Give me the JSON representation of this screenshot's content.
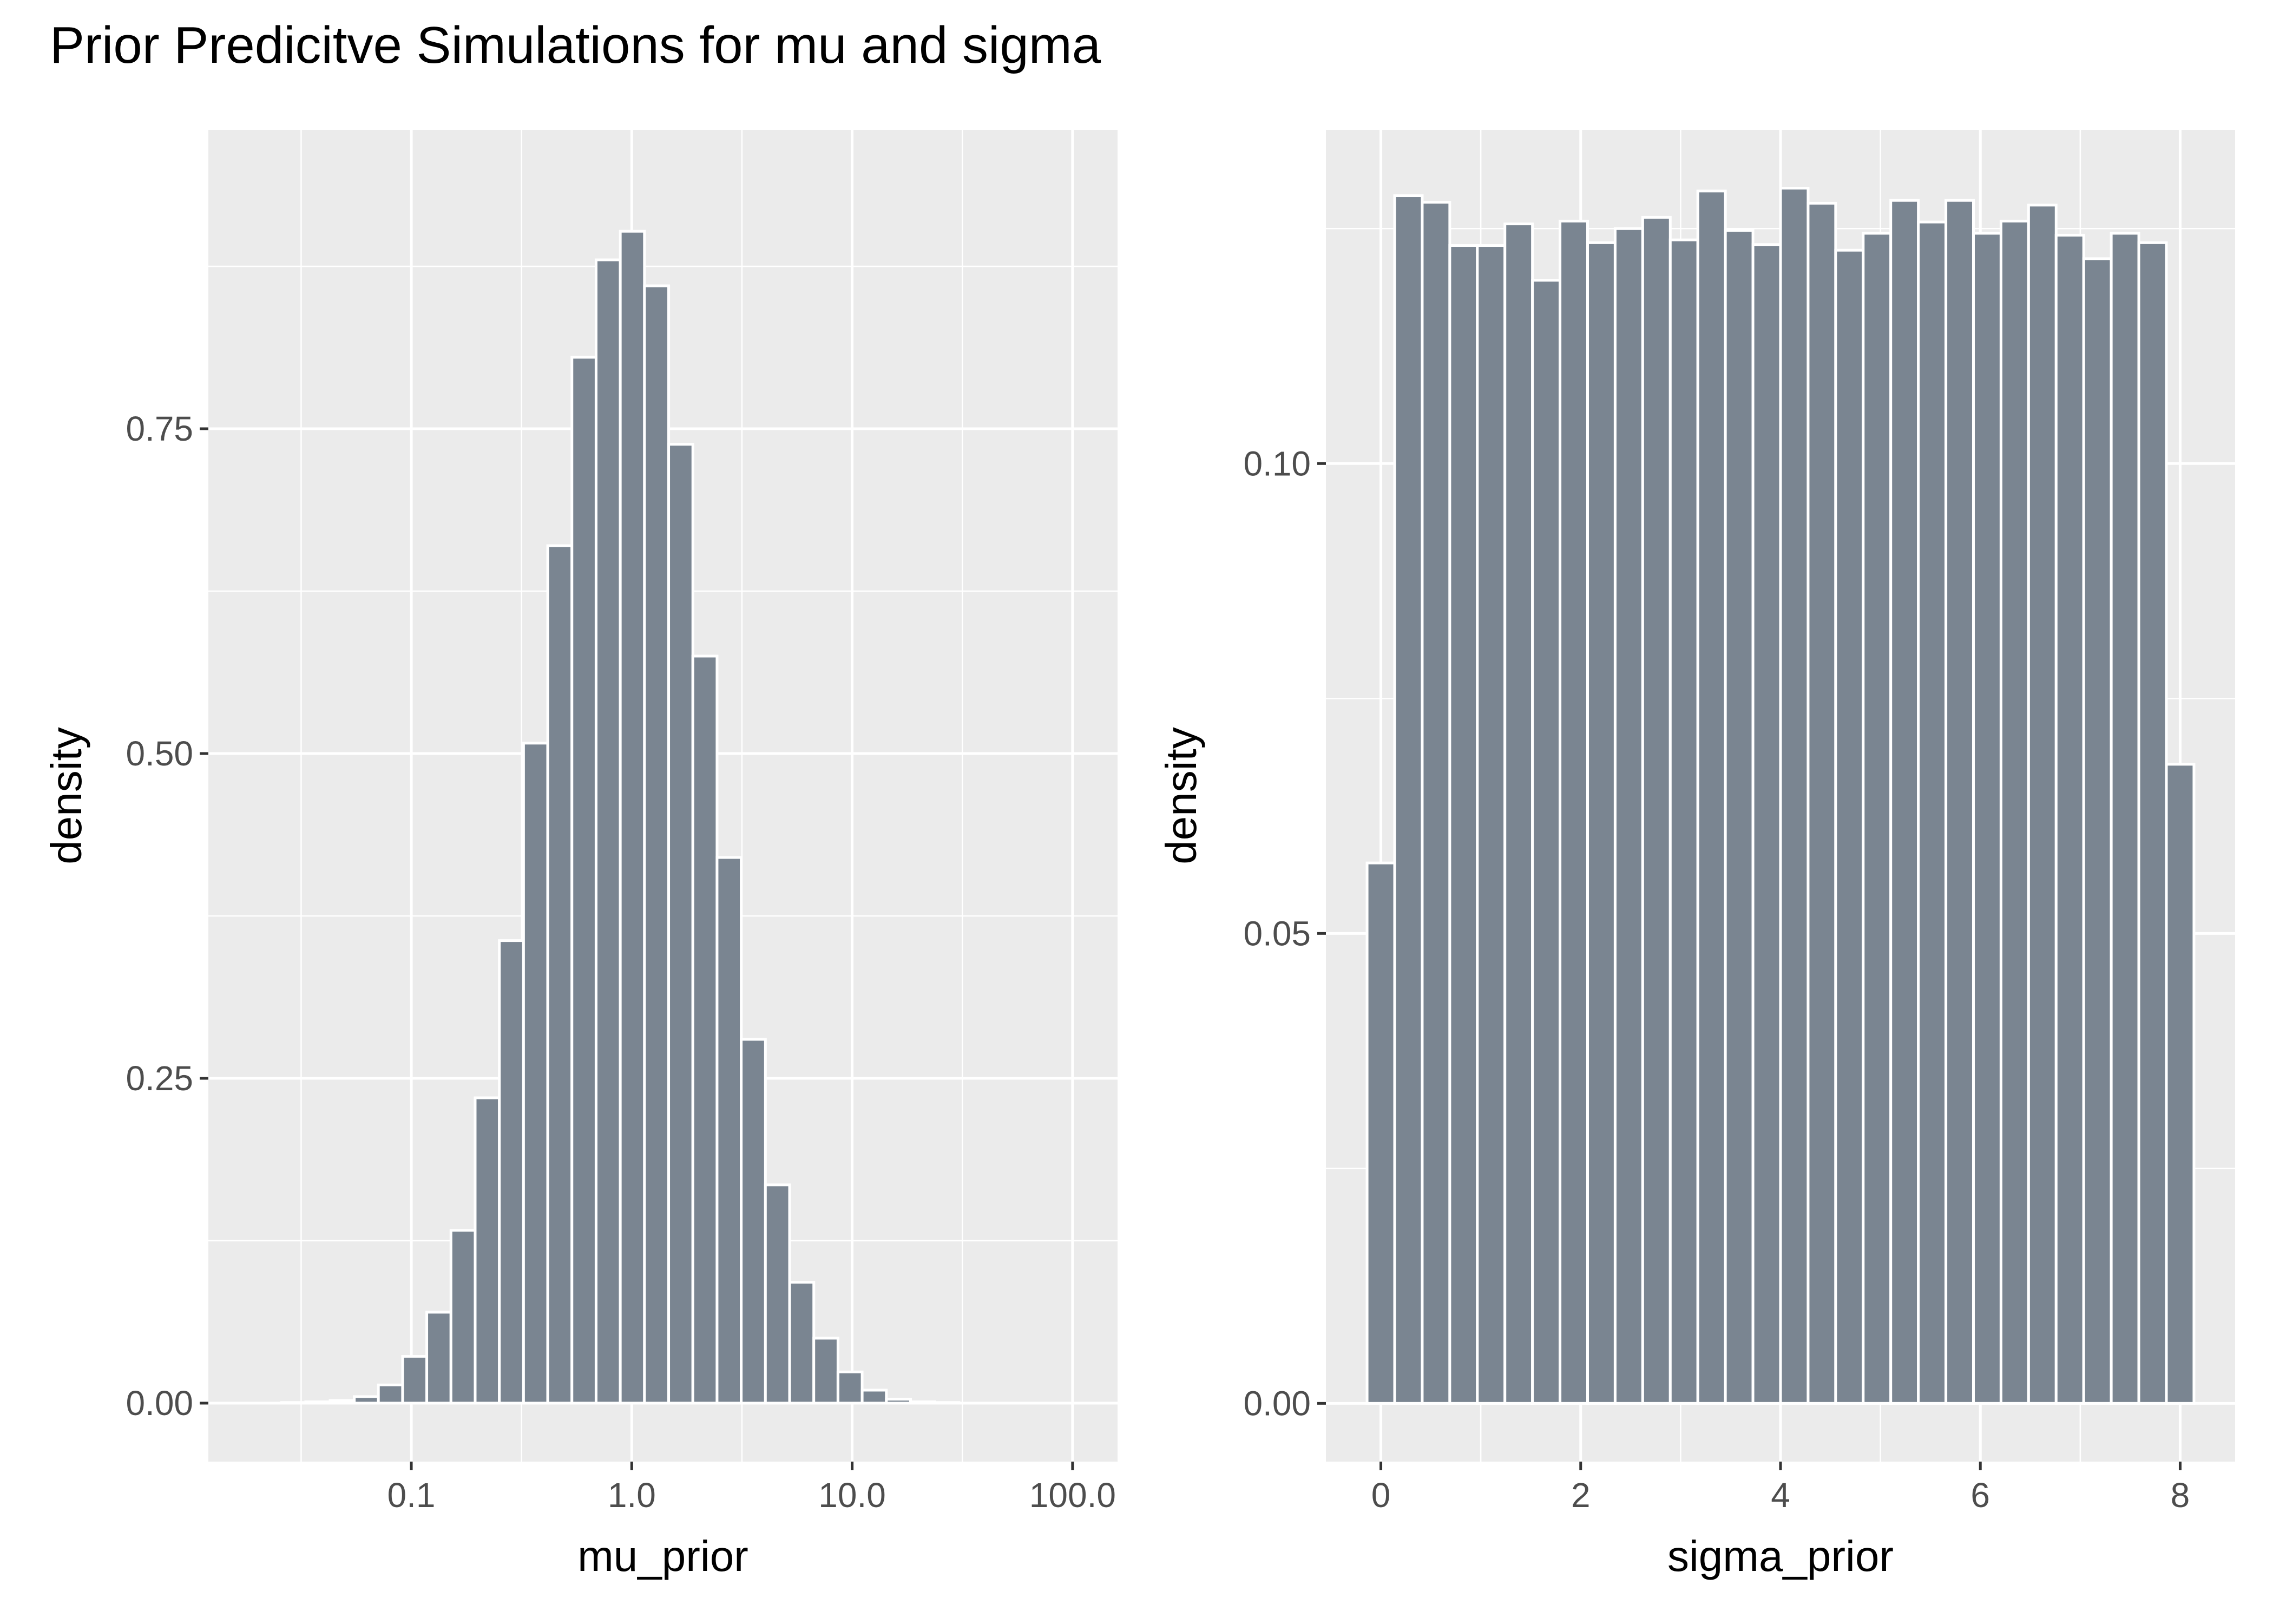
{
  "title": "Prior Predicitve Simulations for mu and sigma",
  "colors": {
    "bar_fill": "#7a8591",
    "bar_outline": "#ffffff",
    "panel_bg": "#ebebeb",
    "grid": "#ffffff"
  },
  "chart_data": [
    {
      "type": "bar",
      "title": "",
      "xlabel": "mu_prior",
      "ylabel": "density",
      "x_scale": "log10",
      "xlim": [
        0.012,
        160
      ],
      "ylim": [
        -0.045,
        0.98
      ],
      "x_ticks": [
        0.1,
        1,
        10,
        100
      ],
      "x_tick_labels": [
        "0.1",
        "1.0",
        "10.0",
        "100.0"
      ],
      "y_ticks": [
        0,
        0.25,
        0.5,
        0.75
      ],
      "y_tick_labels": [
        "0.00",
        "0.25",
        "0.50",
        "0.75"
      ],
      "grid": true,
      "bins": [
        {
          "x0": 0.02,
          "x1": 0.0258,
          "y": 0.0
        },
        {
          "x0": 0.0258,
          "x1": 0.0332,
          "y": 0.0005
        },
        {
          "x0": 0.0332,
          "x1": 0.0428,
          "y": 0.001
        },
        {
          "x0": 0.0428,
          "x1": 0.0551,
          "y": 0.002
        },
        {
          "x0": 0.0551,
          "x1": 0.0709,
          "y": 0.005
        },
        {
          "x0": 0.0709,
          "x1": 0.0913,
          "y": 0.014
        },
        {
          "x0": 0.0913,
          "x1": 0.1175,
          "y": 0.036
        },
        {
          "x0": 0.1175,
          "x1": 0.1513,
          "y": 0.07
        },
        {
          "x0": 0.1513,
          "x1": 0.1948,
          "y": 0.133
        },
        {
          "x0": 0.1948,
          "x1": 0.2508,
          "y": 0.235
        },
        {
          "x0": 0.2508,
          "x1": 0.3229,
          "y": 0.356
        },
        {
          "x0": 0.3229,
          "x1": 0.4157,
          "y": 0.508
        },
        {
          "x0": 0.4157,
          "x1": 0.5352,
          "y": 0.66
        },
        {
          "x0": 0.5352,
          "x1": 0.6891,
          "y": 0.805
        },
        {
          "x0": 0.6891,
          "x1": 0.8872,
          "y": 0.88
        },
        {
          "x0": 0.8872,
          "x1": 1.1422,
          "y": 0.902
        },
        {
          "x0": 1.1422,
          "x1": 1.4706,
          "y": 0.86
        },
        {
          "x0": 1.4706,
          "x1": 1.8934,
          "y": 0.738
        },
        {
          "x0": 1.8934,
          "x1": 2.4377,
          "y": 0.575
        },
        {
          "x0": 2.4377,
          "x1": 3.1385,
          "y": 0.42
        },
        {
          "x0": 3.1385,
          "x1": 4.0408,
          "y": 0.28
        },
        {
          "x0": 4.0408,
          "x1": 5.2025,
          "y": 0.168
        },
        {
          "x0": 5.2025,
          "x1": 6.698,
          "y": 0.093
        },
        {
          "x0": 6.698,
          "x1": 8.6236,
          "y": 0.05
        },
        {
          "x0": 8.6236,
          "x1": 11.1028,
          "y": 0.024
        },
        {
          "x0": 11.1028,
          "x1": 14.2946,
          "y": 0.01
        },
        {
          "x0": 14.2946,
          "x1": 18.404,
          "y": 0.003
        },
        {
          "x0": 18.404,
          "x1": 23.695,
          "y": 0.001
        },
        {
          "x0": 23.695,
          "x1": 30.507,
          "y": 0.0005
        },
        {
          "x0": 30.507,
          "x1": 39.277,
          "y": 0.0
        }
      ]
    },
    {
      "type": "bar",
      "title": "",
      "xlabel": "sigma_prior",
      "ylabel": "density",
      "x_scale": "linear",
      "xlim": [
        -0.55,
        8.55
      ],
      "ylim": [
        -0.0062,
        0.1355
      ],
      "x_ticks": [
        0,
        2,
        4,
        6,
        8
      ],
      "x_tick_labels": [
        "0",
        "2",
        "4",
        "6",
        "8"
      ],
      "y_ticks": [
        0,
        0.05,
        0.1
      ],
      "y_tick_labels": [
        "0.00",
        "0.05",
        "0.10"
      ],
      "grid": true,
      "bins": [
        {
          "x0": -0.1379,
          "x1": 0.1379,
          "y": 0.0575
        },
        {
          "x0": 0.1379,
          "x1": 0.4138,
          "y": 0.1285
        },
        {
          "x0": 0.4138,
          "x1": 0.6897,
          "y": 0.1278
        },
        {
          "x0": 0.6897,
          "x1": 0.9655,
          "y": 0.1232
        },
        {
          "x0": 0.9655,
          "x1": 1.2414,
          "y": 0.1232
        },
        {
          "x0": 1.2414,
          "x1": 1.5172,
          "y": 0.1255
        },
        {
          "x0": 1.5172,
          "x1": 1.7931,
          "y": 0.1195
        },
        {
          "x0": 1.7931,
          "x1": 2.069,
          "y": 0.1258
        },
        {
          "x0": 2.069,
          "x1": 2.3448,
          "y": 0.1235
        },
        {
          "x0": 2.3448,
          "x1": 2.6207,
          "y": 0.125
        },
        {
          "x0": 2.6207,
          "x1": 2.8966,
          "y": 0.1262
        },
        {
          "x0": 2.8966,
          "x1": 3.1724,
          "y": 0.1238
        },
        {
          "x0": 3.1724,
          "x1": 3.4483,
          "y": 0.129
        },
        {
          "x0": 3.4483,
          "x1": 3.7241,
          "y": 0.1248
        },
        {
          "x0": 3.7241,
          "x1": 4.0,
          "y": 0.1233
        },
        {
          "x0": 4.0,
          "x1": 4.2759,
          "y": 0.1293
        },
        {
          "x0": 4.2759,
          "x1": 4.5517,
          "y": 0.1277
        },
        {
          "x0": 4.5517,
          "x1": 4.8276,
          "y": 0.1227
        },
        {
          "x0": 4.8276,
          "x1": 5.1034,
          "y": 0.1245
        },
        {
          "x0": 5.1034,
          "x1": 5.3793,
          "y": 0.128
        },
        {
          "x0": 5.3793,
          "x1": 5.6552,
          "y": 0.1257
        },
        {
          "x0": 5.6552,
          "x1": 5.931,
          "y": 0.128
        },
        {
          "x0": 5.931,
          "x1": 6.2069,
          "y": 0.1245
        },
        {
          "x0": 6.2069,
          "x1": 6.4828,
          "y": 0.1258
        },
        {
          "x0": 6.4828,
          "x1": 6.7586,
          "y": 0.1275
        },
        {
          "x0": 6.7586,
          "x1": 7.0345,
          "y": 0.1243
        },
        {
          "x0": 7.0345,
          "x1": 7.3103,
          "y": 0.1218
        },
        {
          "x0": 7.3103,
          "x1": 7.5862,
          "y": 0.1245
        },
        {
          "x0": 7.5862,
          "x1": 7.8621,
          "y": 0.1235
        },
        {
          "x0": 7.8621,
          "x1": 8.1379,
          "y": 0.068
        }
      ]
    }
  ]
}
